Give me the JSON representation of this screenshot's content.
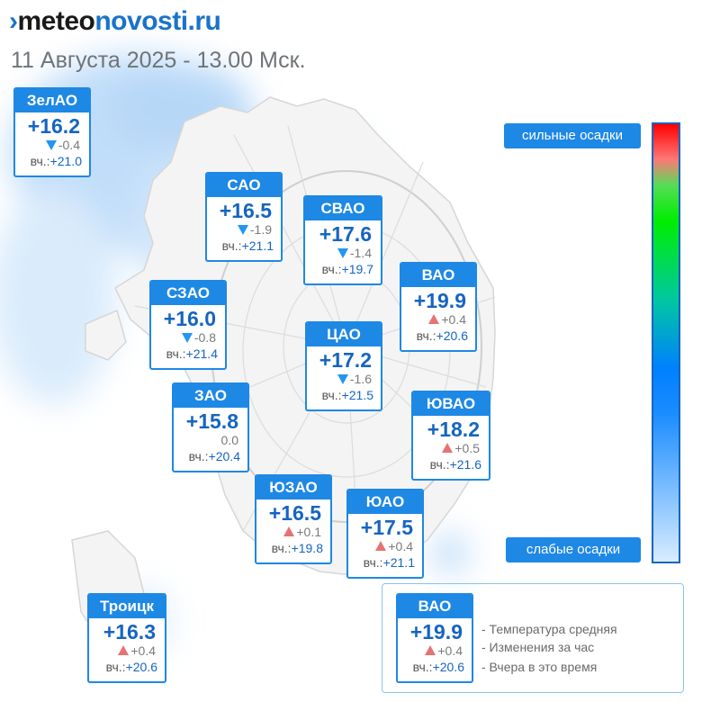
{
  "header": {
    "logo_mark": "›",
    "logo_part1": "meteo",
    "logo_part2": "novosti",
    "logo_part3": ".ru",
    "date_title": "11 Августа 2025 - 13.00 Мск."
  },
  "yesterday_prefix": "вч.:",
  "districts": [
    {
      "id": "zelao",
      "name": "ЗелАО",
      "temp": "+16.2",
      "trend": "down",
      "change": "-0.4",
      "yesterday": "+21.0"
    },
    {
      "id": "sao",
      "name": "САО",
      "temp": "+16.5",
      "trend": "down",
      "change": "-1.9",
      "yesterday": "+21.1"
    },
    {
      "id": "svao",
      "name": "СВАО",
      "temp": "+17.6",
      "trend": "down",
      "change": "-1.4",
      "yesterday": "+19.7"
    },
    {
      "id": "vao",
      "name": "ВАО",
      "temp": "+19.9",
      "trend": "up",
      "change": "+0.4",
      "yesterday": "+20.6"
    },
    {
      "id": "szao",
      "name": "СЗАО",
      "temp": "+16.0",
      "trend": "down",
      "change": "-0.8",
      "yesterday": "+21.4"
    },
    {
      "id": "cao",
      "name": "ЦАО",
      "temp": "+17.2",
      "trend": "down",
      "change": "-1.6",
      "yesterday": "+21.5"
    },
    {
      "id": "zao",
      "name": "ЗАО",
      "temp": "+15.8",
      "trend": "none",
      "change": "0.0",
      "yesterday": "+20.4"
    },
    {
      "id": "yuvao",
      "name": "ЮВАО",
      "temp": "+18.2",
      "trend": "up",
      "change": "+0.5",
      "yesterday": "+21.6"
    },
    {
      "id": "yuzao",
      "name": "ЮЗАО",
      "temp": "+16.5",
      "trend": "up",
      "change": "+0.1",
      "yesterday": "+19.8"
    },
    {
      "id": "yuao",
      "name": "ЮАО",
      "temp": "+17.5",
      "trend": "up",
      "change": "+0.4",
      "yesterday": "+21.1"
    },
    {
      "id": "troitsk",
      "name": "Троицк",
      "temp": "+16.3",
      "trend": "up",
      "change": "+0.4",
      "yesterday": "+20.6"
    }
  ],
  "precip_legend": {
    "strong": "сильные осадки",
    "weak": "слабые осадки",
    "colors": [
      "#ff0000",
      "#00ee00",
      "#0080ff",
      "#d8ecff"
    ]
  },
  "legend": {
    "sample": {
      "name": "ВАО",
      "temp": "+19.9",
      "trend": "up",
      "change": "+0.4",
      "yesterday": "+20.6"
    },
    "desc_temp": "- Температура средняя",
    "desc_change": "- Изменения за час",
    "desc_yesterday": "- Вчера в это время"
  },
  "colors": {
    "accent": "#1e88e5",
    "temp_text": "#1565c0",
    "up": "#e57373",
    "down": "#2196f3"
  }
}
